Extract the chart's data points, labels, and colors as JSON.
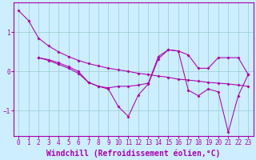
{
  "background_color": "#cceeff",
  "line_color": "#aa00aa",
  "grid_color": "#99cccc",
  "xlabel": "Windchill (Refroidissement éolien,°C)",
  "xlabel_fontsize": 7.0,
  "tick_fontsize": 5.5,
  "yticks": [
    -1,
    0,
    1
  ],
  "xlim": [
    -0.5,
    23.5
  ],
  "ylim": [
    -1.65,
    1.75
  ],
  "x_full": [
    0,
    1,
    2,
    3,
    4,
    5,
    6,
    7,
    8,
    9,
    10,
    11,
    12,
    13,
    14,
    15,
    16,
    17,
    18,
    19,
    20,
    21,
    22,
    23
  ],
  "line1_y": [
    1.55,
    1.3,
    0.85,
    0.65,
    0.5,
    0.38,
    0.28,
    0.2,
    0.14,
    0.08,
    0.04,
    0.0,
    -0.05,
    -0.08,
    -0.12,
    -0.15,
    -0.2,
    -0.22,
    -0.25,
    -0.28,
    -0.3,
    -0.32,
    -0.35,
    -0.38
  ],
  "line2_x": [
    2,
    3,
    4,
    5,
    6,
    7,
    8,
    9,
    10,
    11,
    12,
    13,
    14,
    15,
    16,
    17,
    18,
    19,
    20,
    21,
    22,
    23
  ],
  "line2_y": [
    0.35,
    0.3,
    0.22,
    0.12,
    0.0,
    -0.28,
    -0.38,
    -0.42,
    -0.38,
    -0.38,
    -0.35,
    -0.3,
    0.38,
    0.55,
    0.52,
    0.42,
    0.08,
    0.08,
    0.35,
    0.35,
    0.35,
    -0.08
  ],
  "line3_x": [
    2,
    3,
    4,
    5,
    6,
    7,
    8,
    9,
    10,
    11,
    12,
    13,
    14,
    15,
    16,
    17,
    18,
    19,
    20,
    21,
    22,
    23
  ],
  "line3_y": [
    0.35,
    0.28,
    0.18,
    0.08,
    -0.05,
    -0.28,
    -0.38,
    -0.45,
    -0.9,
    -1.15,
    -0.6,
    -0.32,
    0.32,
    0.55,
    0.52,
    -0.48,
    -0.62,
    -0.45,
    -0.52,
    -1.55,
    -0.62,
    -0.08
  ]
}
